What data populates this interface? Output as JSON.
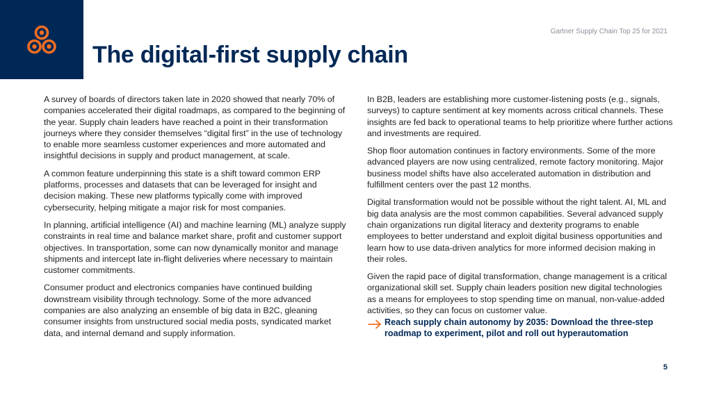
{
  "header": {
    "note": "Gartner Supply Chain Top 25 for 2021",
    "title": "The digital-first supply chain"
  },
  "left_column": {
    "paragraphs": [
      "A survey of boards of directors taken late in 2020 showed that nearly 70% of companies accelerated their digital roadmaps, as compared to the beginning of the year. Supply chain leaders have reached a point in their transformation journeys where they consider themselves “digital first” in the use of technology to enable more seamless customer experiences and more automated and insightful decisions in supply and product management, at scale.",
      "A common feature underpinning this state is a shift toward common ERP platforms, processes and datasets that can be leveraged for insight and decision making. These new platforms typically come with improved cybersecurity, helping mitigate a major risk for most companies.",
      "In planning, artificial intelligence (AI) and machine learning (ML) analyze supply constraints in real time and balance market share, profit and customer support objectives. In transportation, some can now dynamically monitor and manage shipments and intercept late in-flight deliveries where necessary to maintain customer commitments.",
      "Consumer product and electronics companies have continued building downstream visibility through technology. Some of the more advanced companies are also analyzing an ensemble of big data in B2C, gleaning consumer insights from unstructured social media posts, syndicated market data, and internal demand and supply information."
    ]
  },
  "right_column": {
    "paragraphs": [
      "In B2B, leaders are establishing more customer-listening posts (e.g., signals, surveys) to capture sentiment at key moments across critical channels. These insights are fed back to operational teams to help prioritize where further actions and investments are required.",
      "Shop floor automation continues in factory environments. Some of the more advanced players are now using centralized, remote factory monitoring. Major business model shifts have also accelerated automation in distribution and fulfillment centers over the past 12 months.",
      "Digital transformation would not be possible without the right talent. AI, ML and big data analysis are the most common capabilities. Several advanced supply chain organizations run digital literacy and dexterity programs to enable employees to better understand and exploit digital business opportunities and learn how to use data-driven analytics for more informed decision making in their roles.",
      "Given the rapid pace of digital transformation, change management is a critical organizational skill set. Supply chain leaders position new digital technologies as a means for employees to stop spending time on manual, non-value-added activities, so they can focus on customer value."
    ]
  },
  "cta": {
    "text": "Reach supply chain autonomy by 2035: Download the three-step roadmap to experiment, pilot and roll out hyperautomation",
    "icon": "arrow-right-icon"
  },
  "footer": {
    "page_number": "5"
  },
  "colors": {
    "navy": "#002856",
    "orange": "#F26E22",
    "note_gray": "#8a8f99"
  },
  "logo": {
    "icon": "three-rings-logo-icon"
  }
}
